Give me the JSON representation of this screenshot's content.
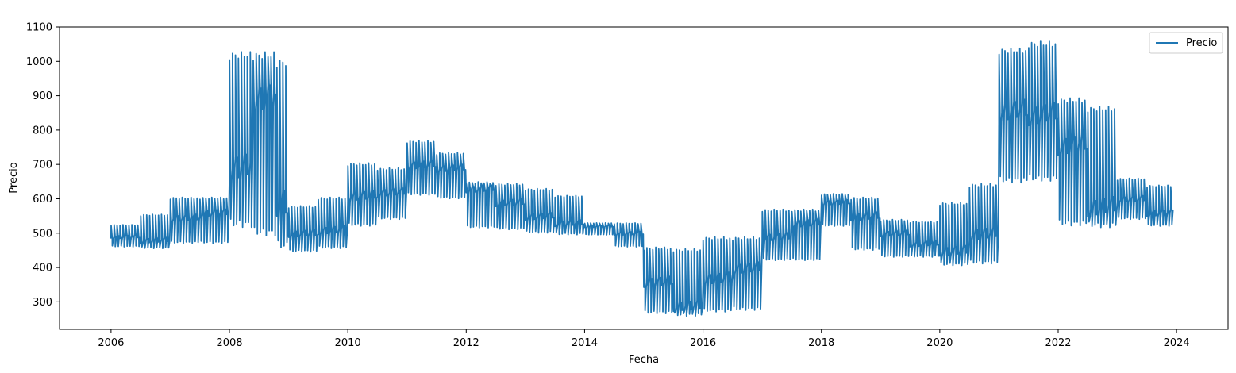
{
  "chart_data": {
    "type": "line",
    "title": "",
    "xlabel": "Fecha",
    "ylabel": "Precio",
    "xlim": [
      2005.13,
      2024.87
    ],
    "ylim": [
      220,
      1100
    ],
    "x_ticks": [
      2006,
      2008,
      2010,
      2012,
      2014,
      2016,
      2018,
      2020,
      2022,
      2024
    ],
    "x_tick_labels": [
      "2006",
      "2008",
      "2010",
      "2012",
      "2014",
      "2016",
      "2018",
      "2020",
      "2022",
      "2024"
    ],
    "y_ticks": [
      300,
      400,
      500,
      600,
      700,
      800,
      900,
      1000,
      1100
    ],
    "y_tick_labels": [
      "300",
      "400",
      "500",
      "600",
      "700",
      "800",
      "900",
      "1000",
      "1100"
    ],
    "grid": false,
    "legend": {
      "position": "top-right",
      "entries": [
        "Precio"
      ]
    },
    "colors": {
      "Precio": "#1f77b4"
    },
    "series": [
      {
        "name": "Precio",
        "segments": [
          {
            "x": [
              2006.0,
              2006.5
            ],
            "lo": 460,
            "hi": 525,
            "mid": 490
          },
          {
            "x": [
              2006.5,
              2007.0
            ],
            "lo": 455,
            "hi": 555,
            "mid": 480
          },
          {
            "x": [
              2007.0,
              2007.5
            ],
            "lo": 470,
            "hi": 605,
            "mid": 545
          },
          {
            "x": [
              2007.5,
              2008.0
            ],
            "lo": 470,
            "hi": 605,
            "mid": 560
          },
          {
            "x": [
              2008.0,
              2008.4
            ],
            "lo": 515,
            "hi": 1030,
            "mid": 700
          },
          {
            "x": [
              2008.4,
              2008.8
            ],
            "lo": 490,
            "hi": 1030,
            "mid": 900
          },
          {
            "x": [
              2008.8,
              2009.0
            ],
            "lo": 450,
            "hi": 1010,
            "mid": 600
          },
          {
            "x": [
              2009.0,
              2009.5
            ],
            "lo": 445,
            "hi": 580,
            "mid": 500
          },
          {
            "x": [
              2009.5,
              2010.0
            ],
            "lo": 455,
            "hi": 605,
            "mid": 510
          },
          {
            "x": [
              2010.0,
              2010.5
            ],
            "lo": 520,
            "hi": 705,
            "mid": 610
          },
          {
            "x": [
              2010.5,
              2011.0
            ],
            "lo": 540,
            "hi": 690,
            "mid": 620
          },
          {
            "x": [
              2011.0,
              2011.5
            ],
            "lo": 610,
            "hi": 770,
            "mid": 700
          },
          {
            "x": [
              2011.5,
              2012.0
            ],
            "lo": 600,
            "hi": 735,
            "mid": 690
          },
          {
            "x": [
              2012.0,
              2012.5
            ],
            "lo": 515,
            "hi": 650,
            "mid": 630
          },
          {
            "x": [
              2012.5,
              2013.0
            ],
            "lo": 510,
            "hi": 645,
            "mid": 590
          },
          {
            "x": [
              2013.0,
              2013.5
            ],
            "lo": 500,
            "hi": 630,
            "mid": 550
          },
          {
            "x": [
              2013.5,
              2014.0
            ],
            "lo": 495,
            "hi": 610,
            "mid": 530
          },
          {
            "x": [
              2014.0,
              2014.5
            ],
            "lo": 495,
            "hi": 530,
            "mid": 520
          },
          {
            "x": [
              2014.5,
              2015.0
            ],
            "lo": 460,
            "hi": 530,
            "mid": 500
          },
          {
            "x": [
              2015.0,
              2015.5
            ],
            "lo": 265,
            "hi": 460,
            "mid": 360
          },
          {
            "x": [
              2015.5,
              2016.0
            ],
            "lo": 258,
            "hi": 455,
            "mid": 290
          },
          {
            "x": [
              2016.0,
              2016.5
            ],
            "lo": 270,
            "hi": 490,
            "mid": 370
          },
          {
            "x": [
              2016.5,
              2017.0
            ],
            "lo": 275,
            "hi": 490,
            "mid": 400
          },
          {
            "x": [
              2017.0,
              2017.5
            ],
            "lo": 420,
            "hi": 570,
            "mid": 490
          },
          {
            "x": [
              2017.5,
              2018.0
            ],
            "lo": 420,
            "hi": 570,
            "mid": 530
          },
          {
            "x": [
              2018.0,
              2018.5
            ],
            "lo": 520,
            "hi": 615,
            "mid": 590
          },
          {
            "x": [
              2018.5,
              2019.0
            ],
            "lo": 450,
            "hi": 605,
            "mid": 550
          },
          {
            "x": [
              2019.0,
              2019.5
            ],
            "lo": 430,
            "hi": 540,
            "mid": 500
          },
          {
            "x": [
              2019.5,
              2020.0
            ],
            "lo": 430,
            "hi": 535,
            "mid": 470
          },
          {
            "x": [
              2020.0,
              2020.5
            ],
            "lo": 405,
            "hi": 590,
            "mid": 450
          },
          {
            "x": [
              2020.5,
              2021.0
            ],
            "lo": 410,
            "hi": 645,
            "mid": 500
          },
          {
            "x": [
              2021.0,
              2021.5
            ],
            "lo": 645,
            "hi": 1040,
            "mid": 860
          },
          {
            "x": [
              2021.5,
              2022.0
            ],
            "lo": 650,
            "hi": 1060,
            "mid": 850
          },
          {
            "x": [
              2022.0,
              2022.5
            ],
            "lo": 520,
            "hi": 895,
            "mid": 760
          },
          {
            "x": [
              2022.5,
              2023.0
            ],
            "lo": 515,
            "hi": 870,
            "mid": 580
          },
          {
            "x": [
              2023.0,
              2023.5
            ],
            "lo": 540,
            "hi": 660,
            "mid": 600
          },
          {
            "x": [
              2023.5,
              2023.95
            ],
            "lo": 520,
            "hi": 640,
            "mid": 560
          }
        ]
      }
    ]
  }
}
